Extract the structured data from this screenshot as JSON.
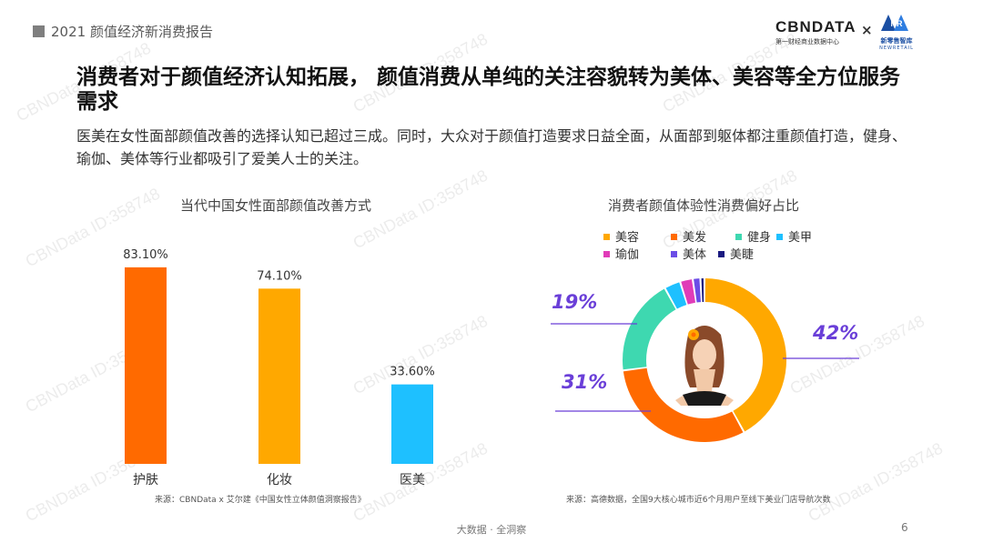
{
  "header": {
    "report_title": "2021 颜值经济新消费报告"
  },
  "logos": {
    "cbndata": "CBNDATA",
    "cbndata_sub": "第一财经商业数据中心",
    "times": "×",
    "partner_mark": "NR",
    "partner_name": "新零售智库",
    "partner_en": "NEWRETAIL"
  },
  "title": "消费者对于颜值经济认知拓展， 颜值消费从单纯的关注容貌转为美体、美容等全方位服务需求",
  "subtitle": "医美在女性面部颜值改善的选择认知已超过三成。同时，大众对于颜值打造要求日益全面，从面部到躯体都注重颜值打造，健身、瑜伽、美体等行业都吸引了爱美人士的关注。",
  "bar_chart": {
    "title": "当代中国女性面部颜值改善方式",
    "source": "来源：CBNData x 艾尔建《中国女性立体颜值洞察报告》"
  },
  "donut_chart": {
    "title": "消费者颜值体验性消费偏好占比",
    "source": "来源：高德数据，全国9大核心城市近6个月用户至线下美业门店导航次数",
    "labels": {
      "a": "42%",
      "b": "31%",
      "c": "19%"
    }
  },
  "chart_data": [
    {
      "type": "bar",
      "title": "当代中国女性面部颜值改善方式",
      "categories": [
        "护肤",
        "化妆",
        "医美"
      ],
      "values": [
        83.1,
        74.1,
        33.6
      ],
      "value_labels": [
        "83.10%",
        "74.10%",
        "33.60%"
      ],
      "colors": [
        "#ff6a00",
        "#ffa800",
        "#1ec0ff"
      ],
      "ylim": [
        0,
        100
      ]
    },
    {
      "type": "pie",
      "title": "消费者颜值体验性消费偏好占比",
      "categories": [
        "美容",
        "美发",
        "健身",
        "美甲",
        "瑜伽",
        "美体",
        "美睫"
      ],
      "values": [
        42,
        31,
        19,
        3.2,
        2.5,
        1.5,
        0.8
      ],
      "colors": [
        "#ffa800",
        "#ff6a00",
        "#3ed8b0",
        "#1ec0ff",
        "#e03cb8",
        "#6b4de6",
        "#1a1a80"
      ],
      "legend": "top"
    }
  ],
  "footer": {
    "brand": "大数据 · 全洞察",
    "page": "6"
  },
  "watermark": "CBNData ID:358748"
}
